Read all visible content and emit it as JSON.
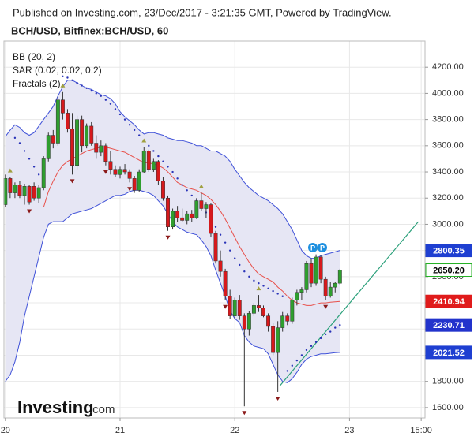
{
  "chart_data": {
    "type": "candlestick",
    "source": "Published on Investing.com, 23/Dec/2017 - 3:21:35 GMT, Powered by TradingView.",
    "title": "BCH/USD, Bitfinex:BCH/USD, 60",
    "legend": [
      "BB (20, 2)",
      "SAR (0.02, 0.02, 0.2)",
      "Fractals (2)"
    ],
    "x": [
      0,
      1,
      2,
      3,
      4,
      5,
      6,
      7,
      8,
      9,
      10,
      11,
      12,
      13,
      14,
      15,
      16,
      17,
      18,
      19,
      20,
      21,
      22,
      23,
      24,
      25,
      26,
      27,
      28,
      29,
      30,
      31,
      32,
      33,
      34,
      35,
      36,
      37,
      38,
      39,
      40,
      41,
      42,
      43,
      44,
      45,
      46,
      47,
      48,
      49,
      50,
      51,
      52,
      53,
      54,
      55,
      56,
      57,
      58,
      59,
      60,
      61,
      62,
      63,
      64,
      65,
      66,
      67,
      68,
      69,
      70
    ],
    "open": [
      3150,
      3350,
      3240,
      3300,
      3220,
      3290,
      3290,
      3200,
      3280,
      3500,
      3680,
      3620,
      3950,
      3850,
      3730,
      3450,
      3800,
      3600,
      3750,
      3620,
      3550,
      3600,
      3480,
      3420,
      3380,
      3420,
      3400,
      3350,
      3260,
      3400,
      3560,
      3420,
      3480,
      3330,
      3200,
      2980,
      3100,
      3050,
      3030,
      3080,
      3050,
      3180,
      3120,
      3150,
      2930,
      2720,
      2640,
      2450,
      2300,
      2420,
      2300,
      2200,
      2320,
      2380,
      2360,
      2300,
      2220,
      2020,
      2210,
      2300,
      2260,
      2420,
      2480,
      2500,
      2700,
      2550,
      2750,
      2580,
      2450,
      2520,
      2550
    ],
    "high": [
      3380,
      3360,
      3320,
      3330,
      3310,
      3300,
      3320,
      3300,
      3520,
      3700,
      3720,
      3980,
      4010,
      3880,
      3850,
      3830,
      3830,
      3770,
      3780,
      3680,
      3640,
      3620,
      3560,
      3450,
      3440,
      3460,
      3420,
      3370,
      3420,
      3590,
      3570,
      3500,
      3490,
      3360,
      3220,
      3120,
      3140,
      3120,
      3100,
      3110,
      3200,
      3240,
      3170,
      3160,
      2950,
      2800,
      2660,
      2500,
      2440,
      2460,
      2320,
      2340,
      2400,
      2460,
      2380,
      2320,
      2250,
      2260,
      2330,
      2320,
      2440,
      2500,
      2520,
      2720,
      2740,
      2770,
      2760,
      2600,
      2560,
      2560,
      2660
    ],
    "low": [
      3130,
      3200,
      3200,
      3200,
      3150,
      3150,
      3180,
      3160,
      3260,
      3480,
      3580,
      3600,
      3800,
      3700,
      3380,
      3420,
      3550,
      3580,
      3600,
      3500,
      3520,
      3450,
      3380,
      3360,
      3350,
      3380,
      3320,
      3240,
      3250,
      3390,
      3400,
      3400,
      3300,
      3180,
      2950,
      2960,
      3020,
      3020,
      3000,
      3020,
      3040,
      3100,
      3050,
      2900,
      2700,
      2600,
      2420,
      2280,
      2280,
      2270,
      1610,
      2150,
      2300,
      2330,
      2290,
      2180,
      2000,
      1720,
      2180,
      2230,
      2240,
      2380,
      2420,
      2480,
      2520,
      2530,
      2550,
      2420,
      2440,
      2480,
      2540
    ],
    "close": [
      3350,
      3240,
      3300,
      3220,
      3290,
      3170,
      3200,
      3280,
      3500,
      3680,
      3620,
      3950,
      3850,
      3730,
      3450,
      3800,
      3600,
      3750,
      3620,
      3550,
      3600,
      3480,
      3420,
      3380,
      3420,
      3400,
      3350,
      3260,
      3400,
      3560,
      3420,
      3480,
      3330,
      3200,
      2980,
      3100,
      3050,
      3030,
      3080,
      3050,
      3180,
      3120,
      3150,
      2930,
      2720,
      2640,
      2450,
      2300,
      2420,
      2300,
      2200,
      2320,
      2380,
      2360,
      2300,
      2220,
      2020,
      2210,
      2300,
      2260,
      2420,
      2480,
      2500,
      2700,
      2550,
      2750,
      2580,
      2450,
      2520,
      2550,
      2650.2
    ],
    "up_color": "#2f9e2f",
    "down_color": "#d7191c",
    "bands": {
      "upper": [
        3670,
        3720,
        3760,
        3740,
        3700,
        3680,
        3700,
        3750,
        3800,
        3850,
        3900,
        3980,
        4050,
        4100,
        4100,
        4080,
        4060,
        4040,
        4030,
        4010,
        3990,
        3980,
        3960,
        3920,
        3860,
        3820,
        3790,
        3760,
        3720,
        3690,
        3700,
        3700,
        3690,
        3680,
        3660,
        3650,
        3640,
        3640,
        3630,
        3620,
        3600,
        3600,
        3580,
        3560,
        3560,
        3540,
        3520,
        3480,
        3420,
        3370,
        3320,
        3280,
        3250,
        3220,
        3200,
        3180,
        3150,
        3120,
        3080,
        3020,
        2960,
        2880,
        2800,
        2760,
        2740,
        2740,
        2760,
        2770,
        2780,
        2790,
        2800.35
      ],
      "middle": [
        null,
        null,
        null,
        null,
        null,
        null,
        null,
        null,
        3130,
        3250,
        3330,
        3400,
        3450,
        3480,
        3500,
        3520,
        3540,
        3560,
        3570,
        3580,
        3590,
        3590,
        3580,
        3570,
        3560,
        3550,
        3530,
        3510,
        3490,
        3470,
        3470,
        3460,
        3450,
        3430,
        3400,
        3360,
        3320,
        3300,
        3280,
        3270,
        3260,
        3240,
        3220,
        3190,
        3150,
        3100,
        3040,
        2970,
        2900,
        2830,
        2770,
        2710,
        2660,
        2620,
        2600,
        2580,
        2560,
        2520,
        2490,
        2450,
        2420,
        2400,
        2390,
        2380,
        2380,
        2390,
        2400,
        2400,
        2405,
        2408,
        2410.94
      ],
      "lower": [
        1800,
        1850,
        1950,
        2100,
        2300,
        2450,
        2600,
        2750,
        2900,
        3000,
        3020,
        3020,
        3020,
        3050,
        3080,
        3090,
        3100,
        3110,
        3120,
        3140,
        3160,
        3180,
        3200,
        3220,
        3220,
        3230,
        3250,
        3260,
        3260,
        3250,
        3240,
        3220,
        3180,
        3140,
        3080,
        3020,
        2980,
        2960,
        2940,
        2930,
        2920,
        2880,
        2830,
        2760,
        2650,
        2550,
        2450,
        2340,
        2280,
        2250,
        2150,
        2100,
        2070,
        2060,
        2050,
        2010,
        1930,
        1850,
        1800,
        1790,
        1820,
        1870,
        1930,
        1970,
        1990,
        2000,
        2010,
        2010,
        2015,
        2020,
        2021.52
      ],
      "color": "#3f51d8",
      "middle_color": "#e8504a",
      "fill": "#e6e6f4"
    },
    "sar": {
      "values": [
        null,
        null,
        3660,
        3620,
        3560,
        3500,
        3440,
        3380,
        3300,
        null,
        null,
        null,
        4130,
        4120,
        4100,
        4080,
        4060,
        4040,
        4020,
        4000,
        3980,
        3950,
        3920,
        3880,
        3840,
        3800,
        3760,
        3720,
        3680,
        3640,
        3600,
        3560,
        3520,
        3480,
        3440,
        3400,
        3350,
        3300,
        3260,
        3220,
        3180,
        3140,
        3090,
        3040,
        2980,
        2920,
        2860,
        2800,
        2740,
        2690,
        2640,
        2600,
        2570,
        2550,
        2530,
        2510,
        2490,
        2470,
        2450,
        1880,
        1920,
        1960,
        2000,
        2040,
        2070,
        2100,
        2130,
        2160,
        2180,
        2210,
        2230.71
      ],
      "color": "#2a34b8"
    },
    "fractals": {
      "up_x": [
        1,
        12,
        29,
        41,
        53,
        65
      ],
      "up": [
        3360,
        4010,
        3590,
        3240,
        2460,
        2770
      ],
      "down_x": [
        5,
        14,
        21,
        26,
        34,
        46,
        50,
        57,
        67
      ],
      "down": [
        3150,
        3380,
        3450,
        3320,
        2950,
        2420,
        1610,
        1720,
        2420
      ],
      "up_color": "#a0a040",
      "down_color": "#8b1a1a"
    },
    "trendline": {
      "x": [
        57.4,
        86.4
      ],
      "y": [
        1765,
        3020
      ],
      "color": "#2aa07a"
    },
    "markers": [
      "P",
      "P"
    ],
    "price_tags": [
      {
        "value": 2800.35,
        "label": "2800.35",
        "color": "#1e3fd1",
        "text_color": "#ffffff"
      },
      {
        "value": 2650.2,
        "label": "2650.20",
        "color": "#ffffff",
        "text_color": "#000000",
        "line": "#22b022"
      },
      {
        "value": 2410.94,
        "label": "2410.94",
        "color": "#e01b1b",
        "text_color": "#ffffff"
      },
      {
        "value": 2230.71,
        "label": "2230.71",
        "color": "#2233cc",
        "text_color": "#ffffff"
      },
      {
        "value": 2021.52,
        "label": "2021.52",
        "color": "#1e3fd1",
        "text_color": "#ffffff"
      }
    ],
    "xlim": [
      -0.3,
      87.8
    ],
    "xticks": [
      {
        "value": 0,
        "label": "20"
      },
      {
        "value": 24,
        "label": "21"
      },
      {
        "value": 48,
        "label": "22"
      },
      {
        "value": 72,
        "label": "23"
      },
      {
        "value": 87,
        "label": "15:00"
      }
    ],
    "ylim": [
      1521,
      4400
    ],
    "yticks": [
      {
        "value": 1600,
        "label": "1600.00"
      },
      {
        "value": 1800,
        "label": "1800.00"
      },
      {
        "value": 2000,
        "label": "2000.00"
      },
      {
        "value": 2200,
        "label": "2200.00"
      },
      {
        "value": 2400,
        "label": "2400.00"
      },
      {
        "value": 2600,
        "label": "2600.00"
      },
      {
        "value": 2800,
        "label": "2800.00"
      },
      {
        "value": 3000,
        "label": "3000.00"
      },
      {
        "value": 3200,
        "label": "3200.00"
      },
      {
        "value": 3400,
        "label": "3400.00"
      },
      {
        "value": 3600,
        "label": "3600.00"
      },
      {
        "value": 3800,
        "label": "3800.00"
      },
      {
        "value": 4000,
        "label": "4000.00"
      },
      {
        "value": 4200,
        "label": "4200.00"
      }
    ],
    "grid": true,
    "logo": [
      "Investing",
      ".com"
    ]
  }
}
